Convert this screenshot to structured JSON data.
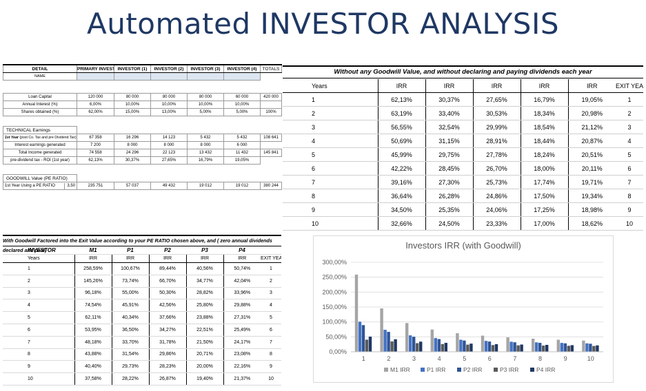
{
  "title": "Automated INVESTOR ANALYSIS",
  "detail": {
    "headers": [
      "DETAIL",
      "PRIMARY INVESTOR",
      "INVESTOR (1)",
      "INVESTOR (2)",
      "INVESTOR (3)",
      "INVESTOR (4)",
      "TOTALS"
    ],
    "name_label": "NAME",
    "loan_capital": {
      "label": "Loan Capital",
      "values": [
        "120 000",
        "80 000",
        "80 000",
        "80 000",
        "60 000",
        "420 000"
      ]
    },
    "annual_interest": {
      "label": "Annual Interest (%)",
      "values": [
        "6,00%",
        "10,00%",
        "10,00%",
        "10,00%",
        "10,00%",
        ""
      ]
    },
    "shares": {
      "label": "Shares obtained (%)",
      "values": [
        "62,00%",
        "15,00%",
        "13,00%",
        "5,00%",
        "5,00%",
        "100%"
      ]
    },
    "technical_label": "TECHNICAL Earnings",
    "first_year": {
      "label": "1st Year",
      "label_note": "(post Co. Tax and pre Dividend Tax)",
      "values": [
        "67 358",
        "16 296",
        "14 123",
        "5 432",
        "5 432",
        "108 641"
      ]
    },
    "interest_generated": {
      "label": "Interest earnings generated",
      "values": [
        "7 200",
        "8 000",
        "8 000",
        "8 000",
        "6 000",
        ""
      ]
    },
    "total_income": {
      "label": "Total Income generated",
      "values": [
        "74 558",
        "24 296",
        "22 123",
        "13 432",
        "11 432",
        "145 841"
      ]
    },
    "roi": {
      "label": "pre-dividend tax - ROI (1st year)",
      "values": [
        "62,13%",
        "30,37%",
        "27,65%",
        "16,79%",
        "19,05%",
        ""
      ]
    },
    "goodwill_label": "GOODWILL Value (PE RATIO)",
    "pe_row": {
      "label": "1st Year Using a PE RATIO",
      "pe": "3,50",
      "values": [
        "235 751",
        "57 037",
        "49 432",
        "19 012",
        "19 012",
        "380 244"
      ]
    }
  },
  "no_goodwill": {
    "heading": "Without any Goodwill Value, and without declaring and paying dividends each year",
    "col_headers": [
      "Years",
      "IRR",
      "IRR",
      "IRR",
      "IRR",
      "IRR",
      "EXIT YEAR"
    ],
    "rows": [
      [
        "1",
        "62,13%",
        "30,37%",
        "27,65%",
        "16,79%",
        "19,05%",
        "1"
      ],
      [
        "2",
        "63,19%",
        "33,40%",
        "30,53%",
        "18,34%",
        "20,98%",
        "2"
      ],
      [
        "3",
        "56,55%",
        "32,54%",
        "29,99%",
        "18,54%",
        "21,12%",
        "3"
      ],
      [
        "4",
        "50,69%",
        "31,15%",
        "28,91%",
        "18,44%",
        "20,87%",
        "4"
      ],
      [
        "5",
        "45,99%",
        "29,75%",
        "27,78%",
        "18,24%",
        "20,51%",
        "5"
      ],
      [
        "6",
        "42,22%",
        "28,45%",
        "26,70%",
        "18,00%",
        "20,11%",
        "6"
      ],
      [
        "7",
        "39,16%",
        "27,30%",
        "25,73%",
        "17,74%",
        "19,71%",
        "7"
      ],
      [
        "8",
        "36,64%",
        "26,28%",
        "24,86%",
        "17,50%",
        "19,34%",
        "8"
      ],
      [
        "9",
        "34,50%",
        "25,35%",
        "24,06%",
        "17,25%",
        "18,98%",
        "9"
      ],
      [
        "10",
        "32,66%",
        "24,50%",
        "23,33%",
        "17,00%",
        "18,62%",
        "10"
      ]
    ]
  },
  "with_goodwill": {
    "heading": "With Goodwill Factored into the Exit Value according to your PE RATIO chosen above, and ( zero annual dividends declared and paid)",
    "investor_header": [
      "INVESTOR",
      "M1",
      "P1",
      "P2",
      "P3",
      "P4",
      ""
    ],
    "col_headers": [
      "Years",
      "IRR",
      "IRR",
      "IRR",
      "IRR",
      "IRR",
      "EXIT YEAR"
    ],
    "rows": [
      [
        "1",
        "258,59%",
        "100,67%",
        "89,44%",
        "40,56%",
        "50,74%",
        "1"
      ],
      [
        "2",
        "145,26%",
        "73,74%",
        "66,70%",
        "34,77%",
        "42,04%",
        "2"
      ],
      [
        "3",
        "96,18%",
        "55,00%",
        "50,30%",
        "28,82%",
        "33,96%",
        "3"
      ],
      [
        "4",
        "74,54%",
        "45,91%",
        "42,56%",
        "25,80%",
        "29,88%",
        "4"
      ],
      [
        "5",
        "62,11%",
        "40,34%",
        "37,66%",
        "23,88%",
        "27,31%",
        "5"
      ],
      [
        "6",
        "53,95%",
        "36,50%",
        "34,27%",
        "22,51%",
        "25,49%",
        "6"
      ],
      [
        "7",
        "48,18%",
        "33,70%",
        "31,78%",
        "21,50%",
        "24,17%",
        "7"
      ],
      [
        "8",
        "43,88%",
        "31,54%",
        "29,86%",
        "20,71%",
        "23,08%",
        "8"
      ],
      [
        "9",
        "40,40%",
        "29,73%",
        "28,23%",
        "20,00%",
        "22,16%",
        "9"
      ],
      [
        "10",
        "37,58%",
        "28,22%",
        "26,87%",
        "19,40%",
        "21,37%",
        "10"
      ]
    ]
  },
  "chart_data": {
    "type": "bar",
    "title": "Investors IRR (with Goodwill)",
    "categories": [
      "1",
      "2",
      "3",
      "4",
      "5",
      "6",
      "7",
      "8",
      "9",
      "10"
    ],
    "ylim": [
      0,
      300
    ],
    "yticks": [
      "0,00%",
      "50,00%",
      "100,00%",
      "150,00%",
      "200,00%",
      "250,00%",
      "300,00%"
    ],
    "legend_position": "bottom",
    "series": [
      {
        "name": "M1 IRR",
        "color": "#a5a5a5",
        "values": [
          258.59,
          145.26,
          96.18,
          74.54,
          62.11,
          53.95,
          48.18,
          43.88,
          40.4,
          37.58
        ]
      },
      {
        "name": "P1 IRR",
        "color": "#4472c4",
        "values": [
          100.67,
          73.74,
          55.0,
          45.91,
          40.34,
          36.5,
          33.7,
          31.54,
          29.73,
          28.22
        ]
      },
      {
        "name": "P2 IRR",
        "color": "#2e5597",
        "values": [
          89.44,
          66.7,
          50.3,
          42.56,
          37.66,
          34.27,
          31.78,
          29.86,
          28.23,
          26.87
        ]
      },
      {
        "name": "P3 IRR",
        "color": "#5a5a5a",
        "values": [
          40.56,
          34.77,
          28.82,
          25.8,
          23.88,
          22.51,
          21.5,
          20.71,
          20.0,
          19.4
        ]
      },
      {
        "name": "P4 IRR",
        "color": "#203864",
        "values": [
          50.74,
          42.04,
          33.96,
          29.88,
          27.31,
          25.49,
          24.17,
          23.08,
          22.16,
          21.37
        ]
      }
    ]
  }
}
